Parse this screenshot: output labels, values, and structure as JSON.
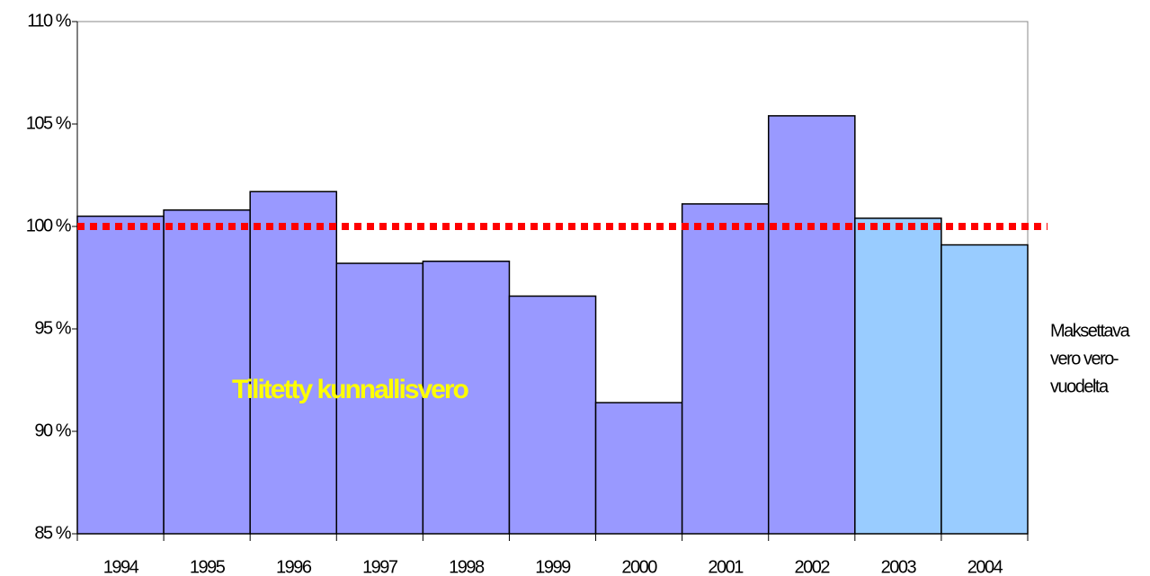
{
  "chart_data": {
    "type": "bar",
    "categories": [
      "1994",
      "1995",
      "1996",
      "1997",
      "1998",
      "1999",
      "2000",
      "2001",
      "2002",
      "2003",
      "2004"
    ],
    "values": [
      100.5,
      100.8,
      101.7,
      98.2,
      98.3,
      96.6,
      91.4,
      101.1,
      105.4,
      100.4,
      99.1
    ],
    "colors": [
      "#9999ff",
      "#9999ff",
      "#9999ff",
      "#9999ff",
      "#9999ff",
      "#9999ff",
      "#9999ff",
      "#9999ff",
      "#9999ff",
      "#99ccff",
      "#99ccff"
    ],
    "ylim": [
      85,
      110
    ],
    "yticks": [
      {
        "value": 85,
        "label": "85 %"
      },
      {
        "value": 90,
        "label": "90 %"
      },
      {
        "value": 95,
        "label": "95 %"
      },
      {
        "value": 100,
        "label": "100 %"
      },
      {
        "value": 105,
        "label": "105 %"
      },
      {
        "value": 110,
        "label": "110 %"
      }
    ],
    "reference_line": {
      "value": 100,
      "color": "#ff0000"
    },
    "annotations": [
      "Tilitetty kunnallisvero",
      [
        "Maksettava",
        "vero vero-",
        "vuodelta"
      ]
    ],
    "grid": false
  }
}
